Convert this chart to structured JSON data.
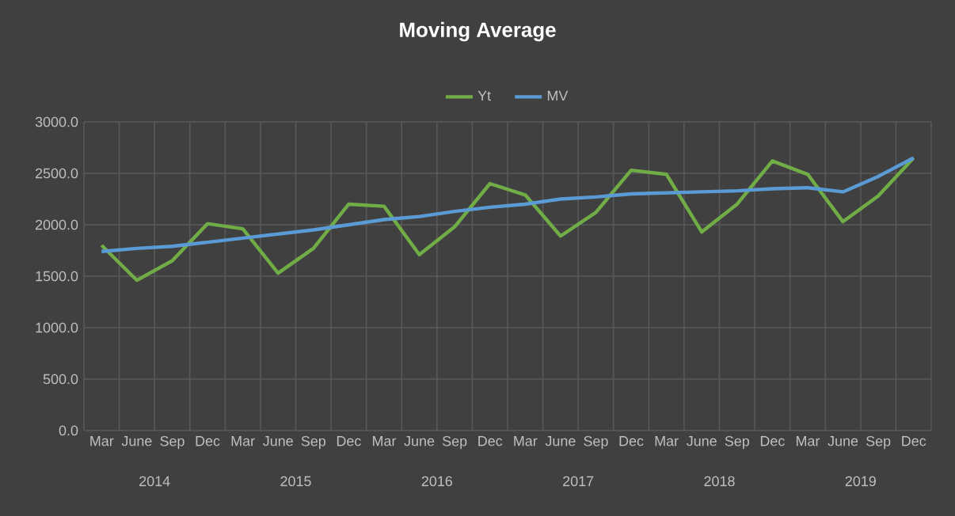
{
  "chart_data": {
    "type": "line",
    "title": "Moving Average",
    "categories": [
      "Mar",
      "June",
      "Sep",
      "Dec",
      "Mar",
      "June",
      "Sep",
      "Dec",
      "Mar",
      "June",
      "Sep",
      "Dec",
      "Mar",
      "June",
      "Sep",
      "Dec",
      "Mar",
      "June",
      "Sep",
      "Dec",
      "Mar",
      "June",
      "Sep",
      "Dec"
    ],
    "series": [
      {
        "name": "Yt",
        "color": "#70ad47",
        "values": [
          1800,
          1460,
          1650,
          2010,
          1960,
          1530,
          1770,
          2200,
          2180,
          1710,
          1980,
          2400,
          2290,
          1890,
          2120,
          2530,
          2490,
          1930,
          2200,
          2620,
          2490,
          2030,
          2280,
          2650
        ]
      },
      {
        "name": "MV",
        "color": "#5b9bd5",
        "values": [
          1740,
          1770,
          1790,
          1830,
          1870,
          1910,
          1950,
          2000,
          2050,
          2080,
          2130,
          2170,
          2200,
          2250,
          2270,
          2300,
          2310,
          2320,
          2330,
          2350,
          2360,
          2320,
          2470,
          2650
        ]
      }
    ],
    "annotations": [
      "2014",
      "2015",
      "2016",
      "2017",
      "2018",
      "2019"
    ],
    "ylim": [
      0,
      3000
    ],
    "yticks": [
      {
        "value": 0,
        "label": "0.0"
      },
      {
        "value": 500,
        "label": "500.0"
      },
      {
        "value": 1000,
        "label": "1000.0"
      },
      {
        "value": 1500,
        "label": "1500.0"
      },
      {
        "value": 2000,
        "label": "2000.0"
      },
      {
        "value": 2500,
        "label": "2500.0"
      },
      {
        "value": 3000,
        "label": "3000.0"
      }
    ],
    "grid": true,
    "legend": "top",
    "marker": "none",
    "line_style": "solid"
  }
}
